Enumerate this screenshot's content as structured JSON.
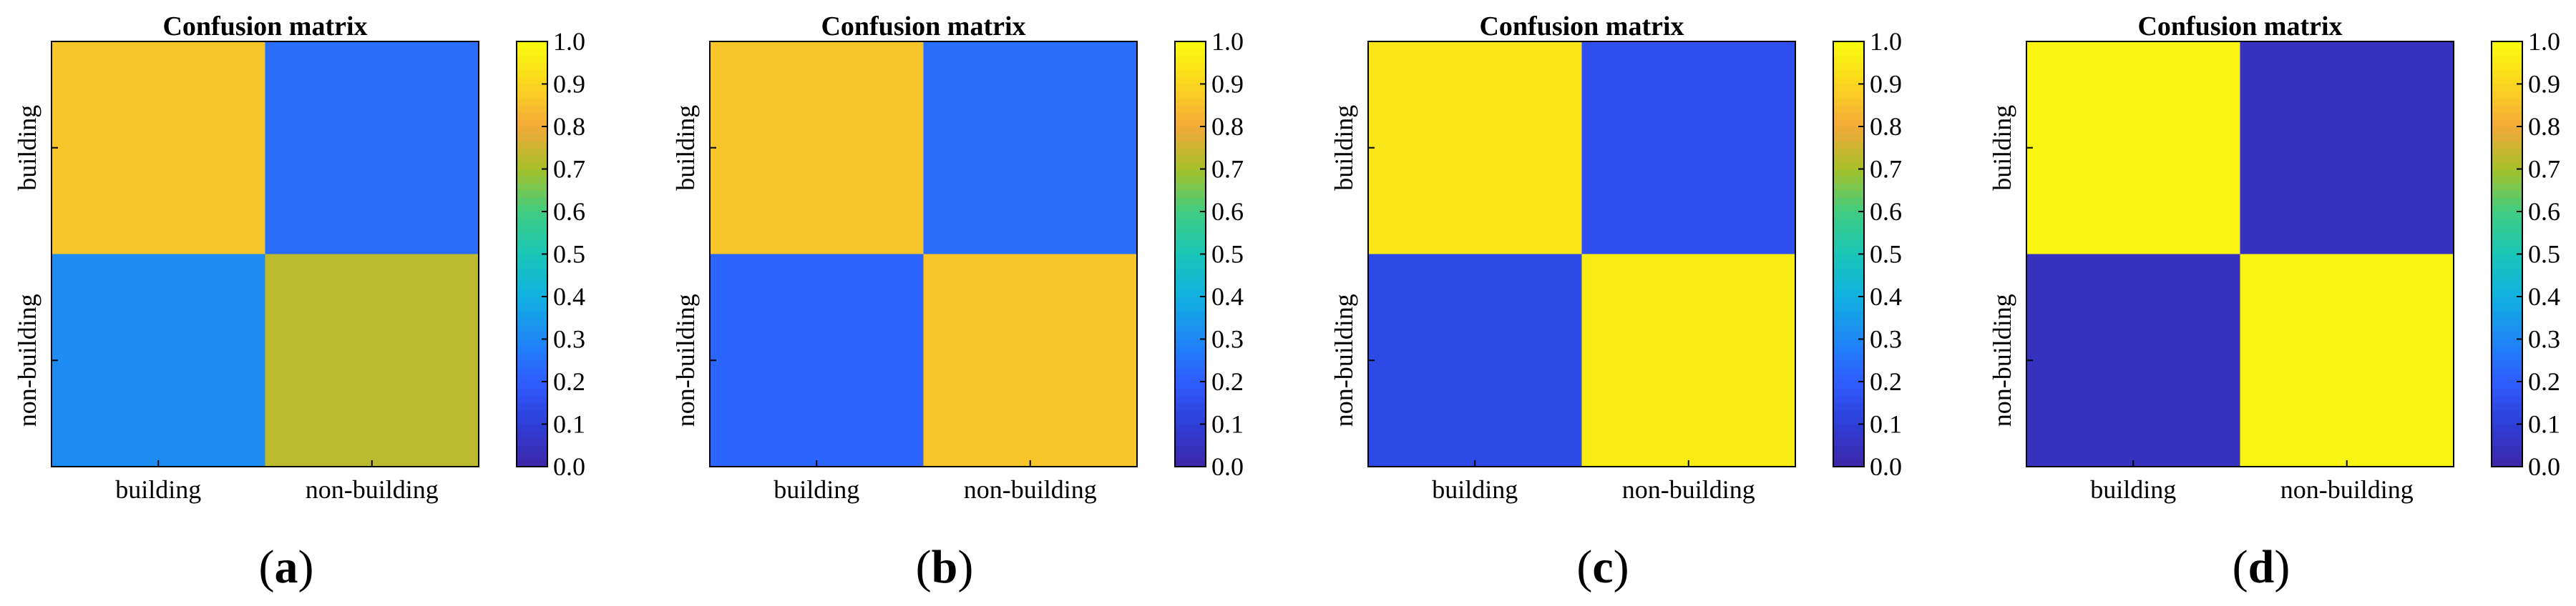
{
  "chart_data": [
    {
      "type": "heatmap",
      "panel_label": "a",
      "title": "Confusion matrix",
      "row_labels": [
        "building",
        "non-building"
      ],
      "col_labels": [
        "building",
        "non-building"
      ],
      "values": [
        [
          0.86,
          0.24
        ],
        [
          0.31,
          0.73
        ]
      ],
      "colorbar": {
        "min": 0.0,
        "max": 1.0,
        "ticks": [
          "0.0",
          "0.1",
          "0.2",
          "0.3",
          "0.4",
          "0.5",
          "0.6",
          "0.7",
          "0.8",
          "0.9",
          "1.0"
        ]
      }
    },
    {
      "type": "heatmap",
      "panel_label": "b",
      "title": "Confusion matrix",
      "row_labels": [
        "building",
        "non-building"
      ],
      "col_labels": [
        "building",
        "non-building"
      ],
      "values": [
        [
          0.86,
          0.24
        ],
        [
          0.22,
          0.86
        ]
      ],
      "colorbar": {
        "min": 0.0,
        "max": 1.0,
        "ticks": [
          "0.0",
          "0.1",
          "0.2",
          "0.3",
          "0.4",
          "0.5",
          "0.6",
          "0.7",
          "0.8",
          "0.9",
          "1.0"
        ]
      }
    },
    {
      "type": "heatmap",
      "panel_label": "c",
      "title": "Confusion matrix",
      "row_labels": [
        "building",
        "non-building"
      ],
      "col_labels": [
        "building",
        "non-building"
      ],
      "values": [
        [
          0.94,
          0.16
        ],
        [
          0.14,
          0.96
        ]
      ],
      "colorbar": {
        "min": 0.0,
        "max": 1.0,
        "ticks": [
          "0.0",
          "0.1",
          "0.2",
          "0.3",
          "0.4",
          "0.5",
          "0.6",
          "0.7",
          "0.8",
          "0.9",
          "1.0"
        ]
      }
    },
    {
      "type": "heatmap",
      "panel_label": "d",
      "title": "Confusion matrix",
      "row_labels": [
        "building",
        "non-building"
      ],
      "col_labels": [
        "building",
        "non-building"
      ],
      "values": [
        [
          0.98,
          0.05
        ],
        [
          0.05,
          0.98
        ]
      ],
      "colorbar": {
        "min": 0.0,
        "max": 1.0,
        "ticks": [
          "0.0",
          "0.1",
          "0.2",
          "0.3",
          "0.4",
          "0.5",
          "0.6",
          "0.7",
          "0.8",
          "0.9",
          "1.0"
        ]
      }
    }
  ],
  "colors": {
    "colormap": [
      "#3e26a8",
      "#2e3ed6",
      "#2f5cff",
      "#1e88f5",
      "#10b0e0",
      "#19c6b8",
      "#3fcd80",
      "#a5c12a",
      "#f3a838",
      "#fad61f",
      "#f9fb0e"
    ]
  }
}
